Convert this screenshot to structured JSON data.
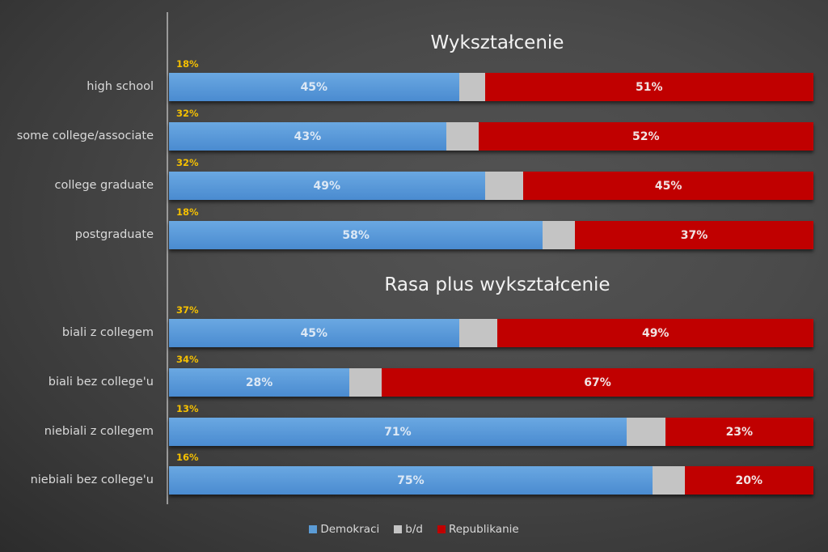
{
  "colors": {
    "democrats": "#5b9bd5",
    "no_data": "#c4c4c4",
    "republicans": "#c00000",
    "share_label": "#f5c000",
    "background": "#474747"
  },
  "sections": [
    {
      "title": "Wykształcenie",
      "rows": [
        {
          "label": "high school",
          "share": "18%",
          "dem": 45,
          "bd": 4,
          "rep": 51,
          "dem_label": "45%",
          "rep_label": "51%"
        },
        {
          "label": "some college/associate",
          "share": "32%",
          "dem": 43,
          "bd": 5,
          "rep": 52,
          "dem_label": "43%",
          "rep_label": "52%"
        },
        {
          "label": "college graduate",
          "share": "32%",
          "dem": 49,
          "bd": 6,
          "rep": 45,
          "dem_label": "49%",
          "rep_label": "45%"
        },
        {
          "label": "postgraduate",
          "share": "18%",
          "dem": 58,
          "bd": 5,
          "rep": 37,
          "dem_label": "58%",
          "rep_label": "37%"
        }
      ]
    },
    {
      "title": "Rasa plus wykształcenie",
      "rows": [
        {
          "label": "biali z collegem",
          "share": "37%",
          "dem": 45,
          "bd": 6,
          "rep": 49,
          "dem_label": "45%",
          "rep_label": "49%"
        },
        {
          "label": "biali bez college'u",
          "share": "34%",
          "dem": 28,
          "bd": 5,
          "rep": 67,
          "dem_label": "28%",
          "rep_label": "67%"
        },
        {
          "label": "niebiali z collegem",
          "share": "13%",
          "dem": 71,
          "bd": 6,
          "rep": 23,
          "dem_label": "71%",
          "rep_label": "23%"
        },
        {
          "label": "niebiali bez college'u",
          "share": "16%",
          "dem": 75,
          "bd": 5,
          "rep": 20,
          "dem_label": "75%",
          "rep_label": "20%"
        }
      ]
    }
  ],
  "legend": [
    {
      "label": "Demokraci",
      "color": "#5b9bd5"
    },
    {
      "label": "b/d",
      "color": "#c4c4c4"
    },
    {
      "label": "Republikanie",
      "color": "#c00000"
    }
  ],
  "chart_data": {
    "type": "bar",
    "orientation": "horizontal",
    "stacked": true,
    "normalized": "100%",
    "titles": [
      "Wykształcenie",
      "Rasa plus wykształcenie"
    ],
    "categories": [
      "high school",
      "some college/associate",
      "college graduate",
      "postgraduate",
      "biali z collegem",
      "biali bez college'u",
      "niebiali z collegem",
      "niebiali bez college'u"
    ],
    "group_share_of_electorate": [
      18,
      32,
      32,
      18,
      37,
      34,
      13,
      16
    ],
    "series": [
      {
        "name": "Demokraci",
        "values": [
          45,
          43,
          49,
          58,
          45,
          28,
          71,
          75
        ]
      },
      {
        "name": "b/d",
        "values": [
          4,
          5,
          6,
          5,
          6,
          5,
          6,
          5
        ]
      },
      {
        "name": "Republikanie",
        "values": [
          51,
          52,
          45,
          37,
          49,
          67,
          23,
          20
        ]
      }
    ],
    "xlabel": "",
    "ylabel": "",
    "xlim": [
      0,
      100
    ],
    "grid": false,
    "legend_position": "bottom"
  }
}
